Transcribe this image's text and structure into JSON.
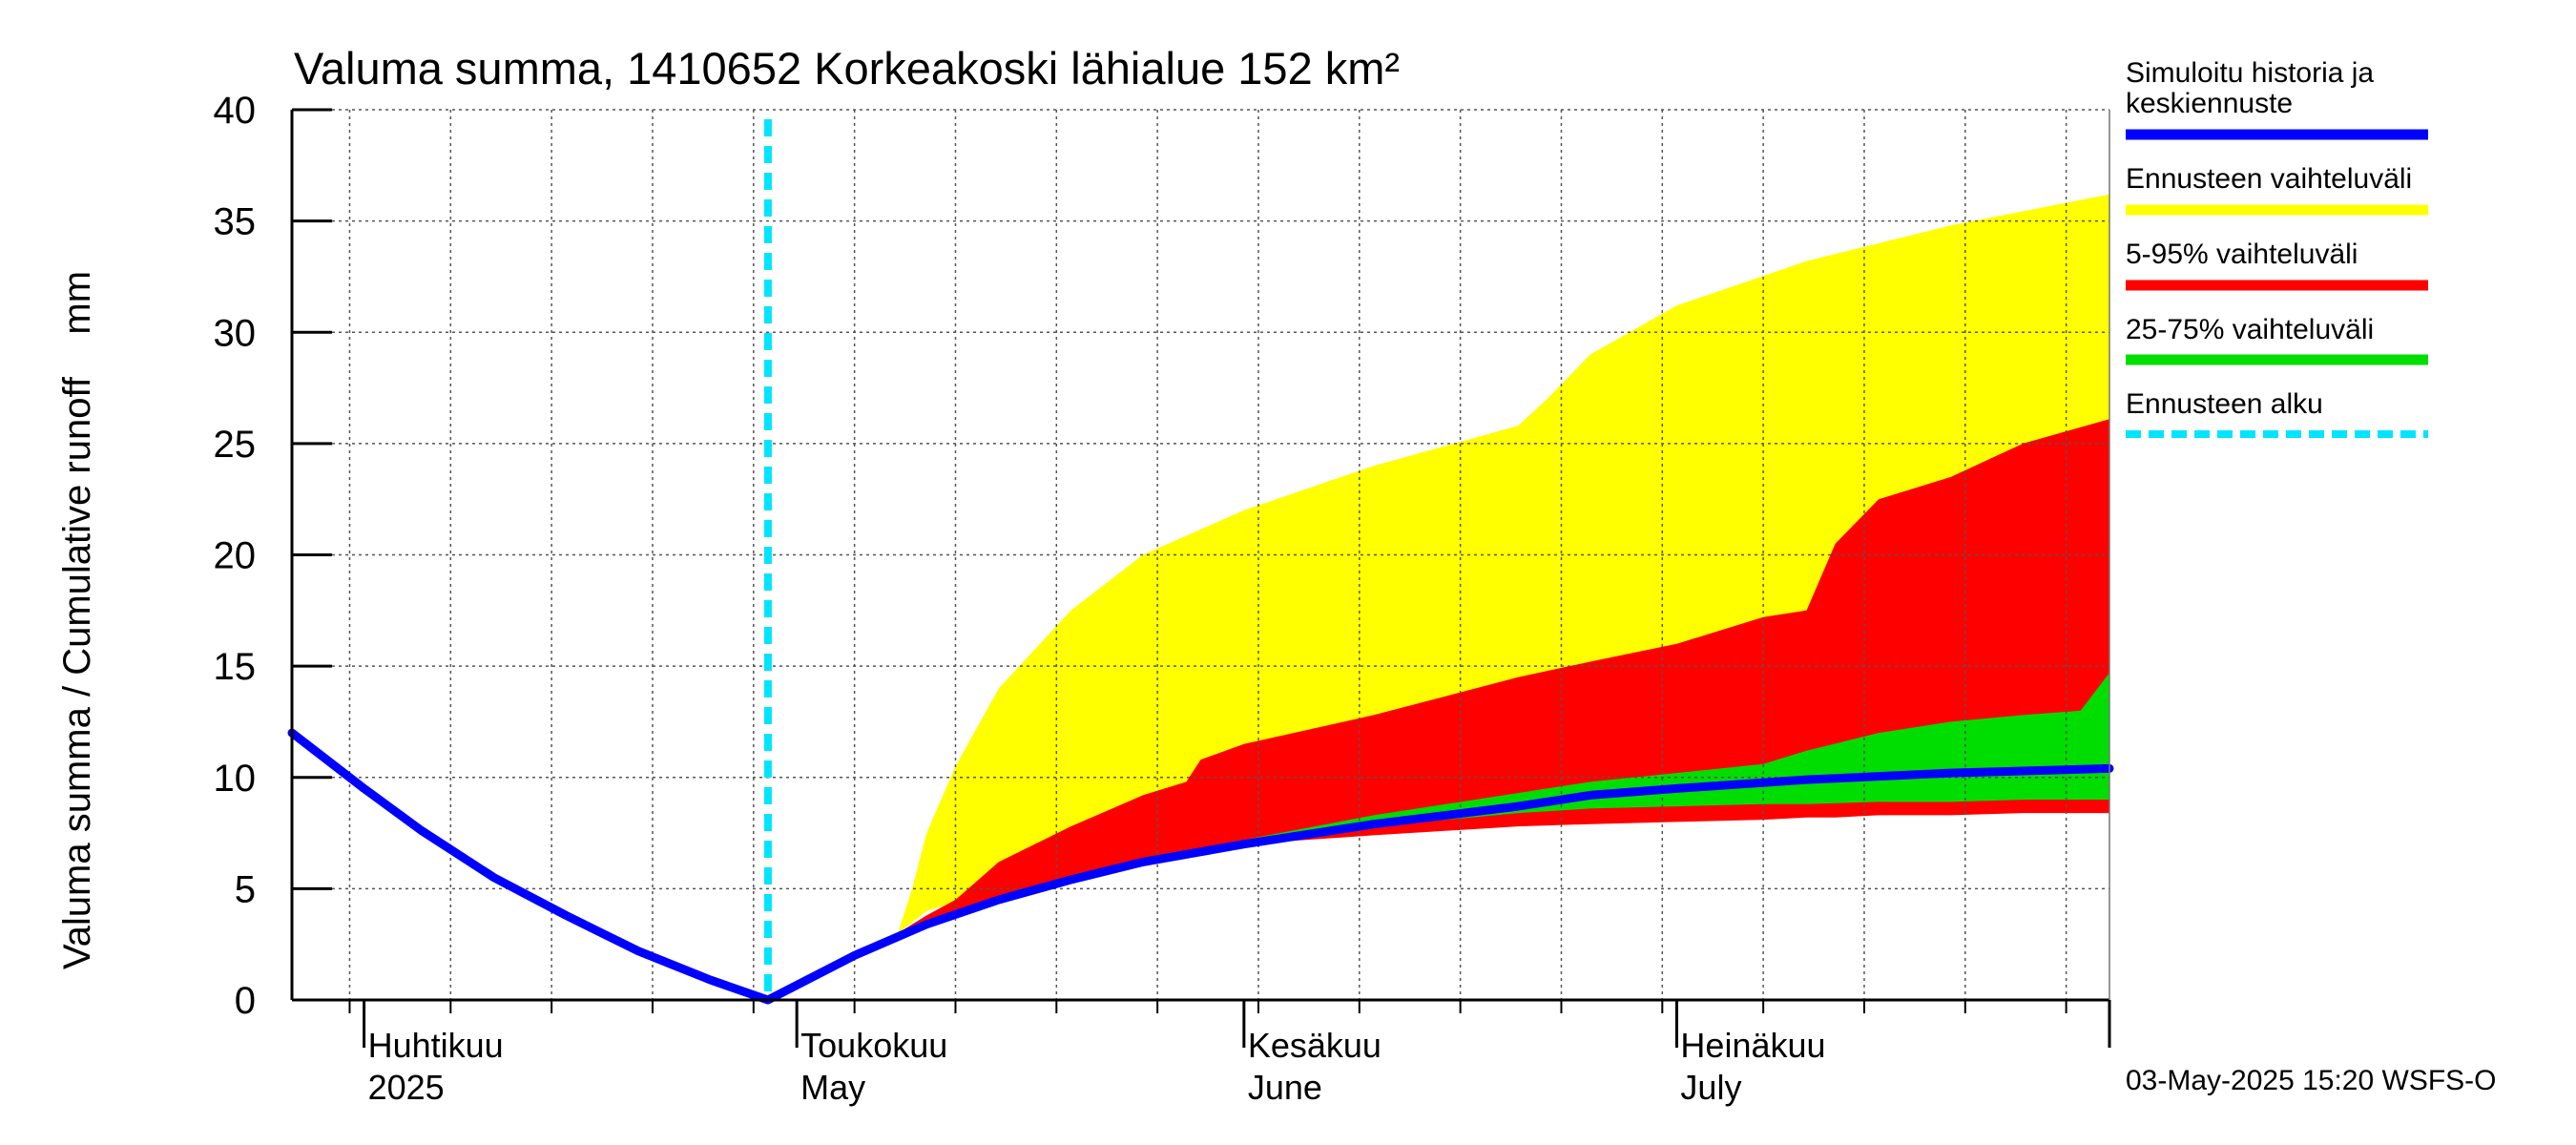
{
  "chart_data": {
    "type": "area",
    "title": "Valuma summa, 1410652 Korkeakoski lähialue 152 km²",
    "ylabel": "Valuma summa / Cumulative runoff    mm",
    "ylim": [
      0,
      40
    ],
    "yticks": [
      0,
      5,
      10,
      15,
      20,
      25,
      30,
      35,
      40
    ],
    "xlim": [
      "2025-03-27",
      "2025-07-31"
    ],
    "grid": true,
    "legend_position": "right",
    "month_labels": [
      {
        "date": "2025-04-01",
        "line1": "Huhtikuu",
        "line2": "2025"
      },
      {
        "date": "2025-05-01",
        "line1": "Toukokuu",
        "line2": "May"
      },
      {
        "date": "2025-06-01",
        "line1": "Kesäkuu",
        "line2": "June"
      },
      {
        "date": "2025-07-01",
        "line1": "Heinäkuu",
        "line2": "July"
      }
    ],
    "forecast_start": "2025-04-29",
    "bands": [
      {
        "name": "Ennusteen vaihteluväli",
        "color": "#ffff00",
        "dates": [
          "2025-04-29",
          "2025-05-05",
          "2025-05-08",
          "2025-05-09",
          "2025-05-10",
          "2025-05-12",
          "2025-05-15",
          "2025-05-20",
          "2025-05-25",
          "2025-06-01",
          "2025-06-10",
          "2025-06-20",
          "2025-06-22",
          "2025-06-25",
          "2025-07-01",
          "2025-07-10",
          "2025-07-20",
          "2025-07-31"
        ],
        "upper": [
          0,
          2.0,
          3.0,
          5.0,
          7.5,
          10.5,
          14.0,
          17.5,
          20.0,
          22.0,
          24.0,
          25.8,
          27.0,
          29.0,
          31.2,
          33.2,
          34.8,
          36.2
        ],
        "lower": [
          0,
          2.0,
          3.0,
          3.5,
          4.0,
          4.4,
          5.0,
          5.8,
          6.5,
          7.2,
          7.6,
          8.0,
          8.1,
          8.2,
          8.3,
          8.4,
          8.6,
          8.6
        ]
      },
      {
        "name": "5-95% vaihteluväli",
        "color": "#ff0000",
        "dates": [
          "2025-04-29",
          "2025-05-05",
          "2025-05-08",
          "2025-05-10",
          "2025-05-12",
          "2025-05-15",
          "2025-05-20",
          "2025-05-25",
          "2025-05-28",
          "2025-05-29",
          "2025-06-01",
          "2025-06-10",
          "2025-06-20",
          "2025-06-25",
          "2025-07-01",
          "2025-07-07",
          "2025-07-10",
          "2025-07-12",
          "2025-07-15",
          "2025-07-20",
          "2025-07-25",
          "2025-07-31"
        ],
        "upper": [
          0,
          2.2,
          3.0,
          3.8,
          4.5,
          6.2,
          7.8,
          9.2,
          9.8,
          10.8,
          11.5,
          12.8,
          14.5,
          15.2,
          16.0,
          17.2,
          17.5,
          20.5,
          22.5,
          23.5,
          25.0,
          26.1
        ],
        "lower": [
          0,
          2.0,
          3.0,
          3.5,
          4.0,
          4.6,
          5.4,
          6.1,
          6.6,
          6.7,
          7.0,
          7.4,
          7.8,
          7.9,
          8.0,
          8.1,
          8.2,
          8.2,
          8.3,
          8.3,
          8.4,
          8.4
        ]
      },
      {
        "name": "25-75% vaihteluväli",
        "color": "#00dd00",
        "dates": [
          "2025-05-28",
          "2025-06-01",
          "2025-06-10",
          "2025-06-20",
          "2025-06-25",
          "2025-07-01",
          "2025-07-07",
          "2025-07-10",
          "2025-07-15",
          "2025-07-20",
          "2025-07-25",
          "2025-07-29",
          "2025-07-31"
        ],
        "upper": [
          6.6,
          7.2,
          8.3,
          9.3,
          9.8,
          10.2,
          10.6,
          11.2,
          12.0,
          12.5,
          12.8,
          13.0,
          14.7
        ],
        "lower": [
          6.4,
          7.0,
          7.8,
          8.4,
          8.6,
          8.7,
          8.8,
          8.8,
          8.9,
          8.9,
          9.0,
          9.0,
          9.0
        ]
      }
    ],
    "series": [
      {
        "name": "Simuloitu historia ja keskiennuste",
        "color": "#0000ff",
        "dates": [
          "2025-03-27",
          "2025-04-01",
          "2025-04-05",
          "2025-04-10",
          "2025-04-15",
          "2025-04-20",
          "2025-04-25",
          "2025-04-29",
          "2025-05-05",
          "2025-05-10",
          "2025-05-15",
          "2025-05-20",
          "2025-05-25",
          "2025-06-01",
          "2025-06-10",
          "2025-06-20",
          "2025-06-25",
          "2025-07-01",
          "2025-07-10",
          "2025-07-20",
          "2025-07-31"
        ],
        "values": [
          12.0,
          9.5,
          7.6,
          5.5,
          3.8,
          2.2,
          0.9,
          0.0,
          2.0,
          3.4,
          4.5,
          5.4,
          6.2,
          7.0,
          7.9,
          8.7,
          9.2,
          9.5,
          9.9,
          10.2,
          10.4
        ]
      }
    ],
    "legend": [
      {
        "label_line1": "Simuloitu historia ja",
        "label_line2": "keskiennuste",
        "color": "#0000ff",
        "style": "solid"
      },
      {
        "label_line1": "Ennusteen vaihteluväli",
        "label_line2": "",
        "color": "#ffff00",
        "style": "solid"
      },
      {
        "label_line1": "5-95% vaihteluväli",
        "label_line2": "",
        "color": "#ff0000",
        "style": "solid"
      },
      {
        "label_line1": "25-75% vaihteluväli",
        "label_line2": "",
        "color": "#00dd00",
        "style": "solid"
      },
      {
        "label_line1": "Ennusteen alku",
        "label_line2": "",
        "color": "#00e5ff",
        "style": "dashed"
      }
    ],
    "footer": "03-May-2025 15:20 WSFS-O"
  }
}
